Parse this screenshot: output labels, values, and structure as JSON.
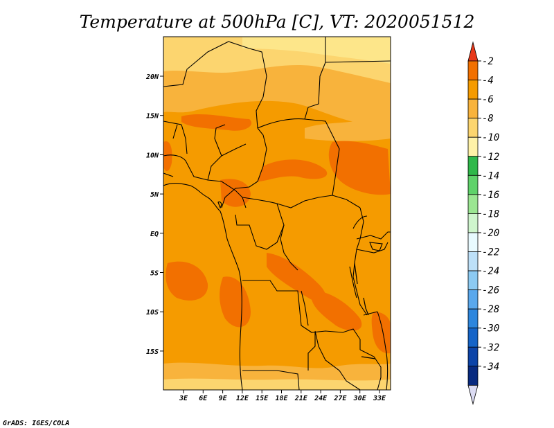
{
  "title": "Temperature at 500hPa [C], VT: 2020051512",
  "credit": "GrADS: IGES/COLA",
  "map": {
    "x_ticks": [
      "3E",
      "6E",
      "9E",
      "12E",
      "15E",
      "18E",
      "21E",
      "24E",
      "27E",
      "30E",
      "33E"
    ],
    "y_ticks": [
      "20N",
      "15N",
      "10N",
      "5N",
      "EQ",
      "5S",
      "10S",
      "15S"
    ]
  },
  "colorbar": {
    "labels": [
      "-2",
      "-4",
      "-6",
      "-8",
      "-10",
      "-12",
      "-14",
      "-16",
      "-18",
      "-20",
      "-22",
      "-24",
      "-26",
      "-28",
      "-30",
      "-32",
      "-34"
    ],
    "colors": [
      "#e8381a",
      "#f27000",
      "#f59b00",
      "#f8b33c",
      "#fcd56f",
      "#fff2a8",
      "#2fb84a",
      "#5fd26a",
      "#9be692",
      "#cff5cd",
      "#e8faff",
      "#bde0f8",
      "#8ccaf2",
      "#5aa8ec",
      "#2d86dd",
      "#1564c8",
      "#0c44a8",
      "#082a80",
      "#dcdcf4"
    ]
  },
  "colors": {
    "land_base": "#f59b00",
    "warm_patch": "#f27000",
    "cool_patch": "#f8b33c",
    "cooler_patch": "#fcd56f",
    "coolest_patch": "#fde68a",
    "border": "#000000"
  }
}
